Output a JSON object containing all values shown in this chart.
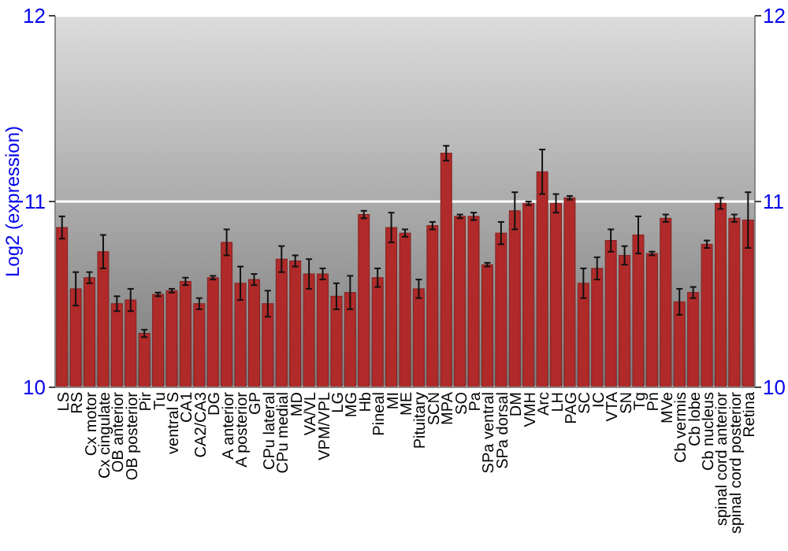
{
  "chart_data": {
    "type": "bar",
    "ylabel": "Log2 (expression)",
    "categories": [
      "LS",
      "RS",
      "Cx motor",
      "Cx cingulate",
      "OB anterior",
      "OB posterior",
      "Pir",
      "Tu",
      "ventral S",
      "CA1",
      "CA2/CA3",
      "DG",
      "A anterior",
      "A posterior",
      "GP",
      "CPu lateral",
      "CPu medial",
      "MD",
      "VA/VL",
      "VPM/VPL",
      "LG",
      "MG",
      "Hb",
      "Pineal",
      "MI",
      "ME",
      "Pituitary",
      "SCN",
      "MPA",
      "SO",
      "Pa",
      "SPa ventral",
      "SPa dorsal",
      "DM",
      "VMH",
      "Arc",
      "LH",
      "PAG",
      "SC",
      "IC",
      "VTA",
      "SN",
      "Tg",
      "Pn",
      "MVe",
      "Cb vermis",
      "Cb lobe",
      "Cb nucleus",
      "spinal cord anterior",
      "spinal cord posterior",
      "Retina"
    ],
    "values": [
      10.86,
      10.53,
      10.59,
      10.73,
      10.45,
      10.47,
      10.29,
      10.5,
      10.52,
      10.57,
      10.45,
      10.59,
      10.78,
      10.56,
      10.58,
      10.45,
      10.69,
      10.68,
      10.61,
      10.61,
      10.49,
      10.51,
      10.93,
      10.59,
      10.86,
      10.83,
      10.53,
      10.87,
      11.26,
      10.92,
      10.92,
      10.66,
      10.83,
      10.95,
      10.99,
      11.16,
      10.99,
      11.02,
      10.56,
      10.64,
      10.79,
      10.71,
      10.82,
      10.72,
      10.91,
      10.46,
      10.51,
      10.77,
      10.99,
      10.91,
      10.9
    ],
    "errors": [
      0.06,
      0.09,
      0.03,
      0.09,
      0.04,
      0.06,
      0.02,
      0.01,
      0.01,
      0.02,
      0.03,
      0.01,
      0.07,
      0.09,
      0.03,
      0.07,
      0.07,
      0.03,
      0.08,
      0.03,
      0.07,
      0.09,
      0.02,
      0.05,
      0.08,
      0.02,
      0.05,
      0.02,
      0.04,
      0.01,
      0.02,
      0.01,
      0.06,
      0.1,
      0.01,
      0.12,
      0.05,
      0.01,
      0.08,
      0.06,
      0.06,
      0.05,
      0.1,
      0.01,
      0.02,
      0.07,
      0.03,
      0.02,
      0.03,
      0.02,
      0.15
    ],
    "color": "#b02a2a",
    "ylim": [
      10,
      12
    ],
    "yticks": [
      10,
      11,
      12
    ],
    "y2lim": [
      10,
      12
    ],
    "y2ticks": [
      10,
      11,
      12
    ],
    "grid": "y"
  }
}
